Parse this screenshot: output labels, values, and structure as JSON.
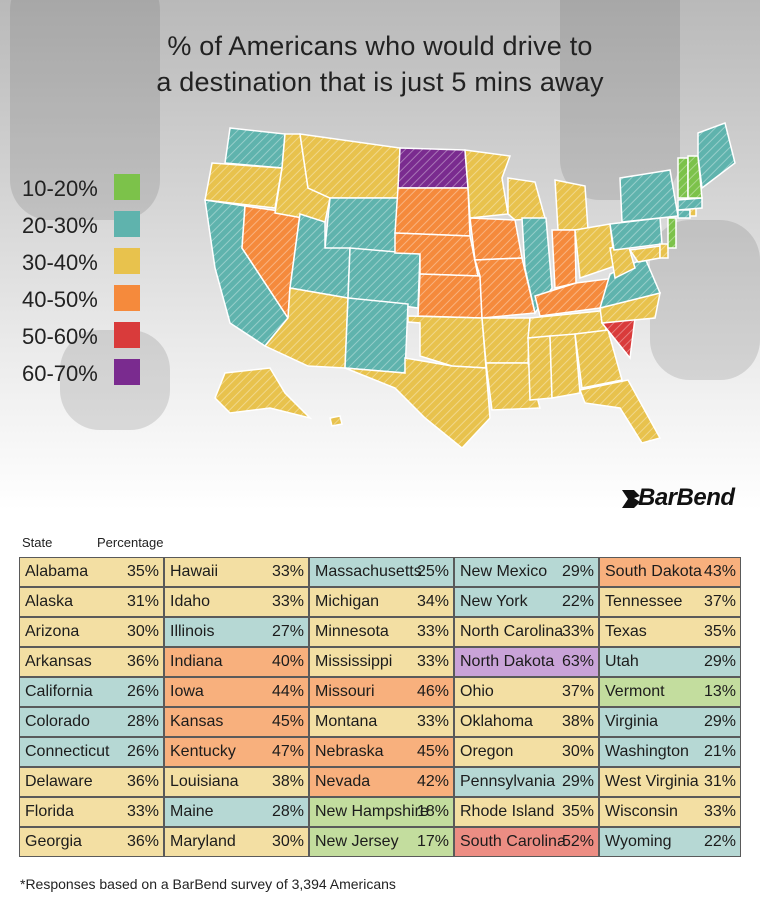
{
  "title_line1": "% of Americans who would drive to",
  "title_line2": "a destination that is just 5 mins away",
  "brand": "BarBend",
  "colors": {
    "10-20%": "#7cc24a",
    "20-30%": "#5fb3ad",
    "30-40%": "#e8c24d",
    "40-50%": "#f58a3c",
    "50-60%": "#d93b3b",
    "60-70%": "#7a2b8f",
    "cell_10-20%": "#c3dd9e",
    "cell_20-30%": "#b6d8d4",
    "cell_30-40%": "#f3dfa3",
    "cell_40-50%": "#f8b07d",
    "cell_50-60%": "#ec8d83",
    "cell_60-70%": "#c9a3d8"
  },
  "legend": [
    "10-20%",
    "20-30%",
    "30-40%",
    "40-50%",
    "50-60%",
    "60-70%"
  ],
  "table": {
    "col_state": "State",
    "col_pct": "Percentage"
  },
  "chart_data": {
    "type": "table",
    "title": "% of Americans who would drive to a destination that is just 5 mins away",
    "bins": [
      "10-20%",
      "20-30%",
      "30-40%",
      "40-50%",
      "50-60%",
      "60-70%"
    ],
    "rows": [
      {
        "state": "Alabama",
        "value": 35,
        "label": "35%"
      },
      {
        "state": "Alaska",
        "value": 31,
        "label": "31%"
      },
      {
        "state": "Arizona",
        "value": 30,
        "label": "30%"
      },
      {
        "state": "Arkansas",
        "value": 36,
        "label": "36%"
      },
      {
        "state": "California",
        "value": 26,
        "label": "26%"
      },
      {
        "state": "Colorado",
        "value": 28,
        "label": "28%"
      },
      {
        "state": "Connecticut",
        "value": 26,
        "label": "26%"
      },
      {
        "state": "Delaware",
        "value": 36,
        "label": "36%"
      },
      {
        "state": "Florida",
        "value": 33,
        "label": "33%"
      },
      {
        "state": "Georgia",
        "value": 36,
        "label": "36%"
      },
      {
        "state": "Hawaii",
        "value": 33,
        "label": "33%"
      },
      {
        "state": "Idaho",
        "value": 33,
        "label": "33%"
      },
      {
        "state": "Illinois",
        "value": 27,
        "label": "27%"
      },
      {
        "state": "Indiana",
        "value": 40,
        "label": "40%"
      },
      {
        "state": "Iowa",
        "value": 44,
        "label": "44%"
      },
      {
        "state": "Kansas",
        "value": 45,
        "label": "45%"
      },
      {
        "state": "Kentucky",
        "value": 47,
        "label": "47%"
      },
      {
        "state": "Louisiana",
        "value": 38,
        "label": "38%"
      },
      {
        "state": "Maine",
        "value": 28,
        "label": "28%"
      },
      {
        "state": "Maryland",
        "value": 30,
        "label": "30%"
      },
      {
        "state": "Massachusetts",
        "value": 25,
        "label": "25%"
      },
      {
        "state": "Michigan",
        "value": 34,
        "label": "34%"
      },
      {
        "state": "Minnesota",
        "value": 33,
        "label": "33%"
      },
      {
        "state": "Mississippi",
        "value": 33,
        "label": "33%"
      },
      {
        "state": "Missouri",
        "value": 46,
        "label": "46%"
      },
      {
        "state": "Montana",
        "value": 33,
        "label": "33%"
      },
      {
        "state": "Nebraska",
        "value": 45,
        "label": "45%"
      },
      {
        "state": "Nevada",
        "value": 42,
        "label": "42%"
      },
      {
        "state": "New Hampshire",
        "value": 18,
        "label": "18%"
      },
      {
        "state": "New Jersey",
        "value": 17,
        "label": "17%"
      },
      {
        "state": "New Mexico",
        "value": 29,
        "label": "29%"
      },
      {
        "state": "New York",
        "value": 22,
        "label": "22%"
      },
      {
        "state": "North Carolina",
        "value": 33,
        "label": "33%"
      },
      {
        "state": "North Dakota",
        "value": 63,
        "label": "63%"
      },
      {
        "state": "Ohio",
        "value": 37,
        "label": "37%"
      },
      {
        "state": "Oklahoma",
        "value": 38,
        "label": "38%"
      },
      {
        "state": "Oregon",
        "value": 30,
        "label": "30%"
      },
      {
        "state": "Pennsylvania",
        "value": 29,
        "label": "29%"
      },
      {
        "state": "Rhode Island",
        "value": 35,
        "label": "35%"
      },
      {
        "state": "South Carolina",
        "value": 52,
        "label": "52%"
      },
      {
        "state": "South Dakota",
        "value": 43,
        "label": "43%"
      },
      {
        "state": "Tennessee",
        "value": 37,
        "label": "37%"
      },
      {
        "state": "Texas",
        "value": 35,
        "label": "35%"
      },
      {
        "state": "Utah",
        "value": 29,
        "label": "29%"
      },
      {
        "state": "Vermont",
        "value": 13,
        "label": "13%"
      },
      {
        "state": "Virginia",
        "value": 29,
        "label": "29%"
      },
      {
        "state": "Washington",
        "value": 21,
        "label": "21%"
      },
      {
        "state": "West Virginia",
        "value": 31,
        "label": "31%"
      },
      {
        "state": "Wisconsin",
        "value": 33,
        "label": "33%"
      },
      {
        "state": "Wyoming",
        "value": 22,
        "label": "22%"
      }
    ]
  },
  "footnote": "*Responses based on a BarBend survey of 3,394 Americans"
}
